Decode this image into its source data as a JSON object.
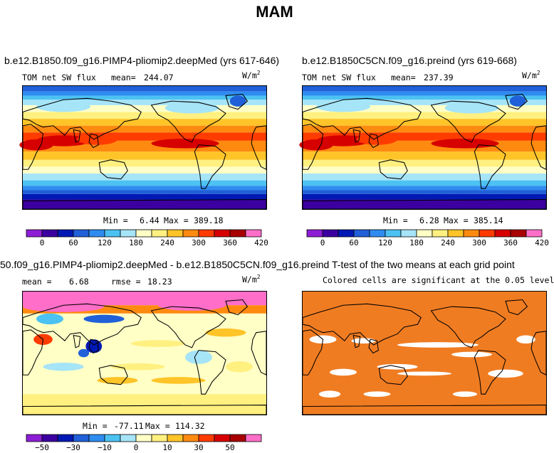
{
  "page": {
    "title": "MAM"
  },
  "colors": {
    "sw_scale": [
      "#8c1ed6",
      "#3c00a0",
      "#0019b4",
      "#2060d8",
      "#2e8cf0",
      "#4cc2f2",
      "#a6e4f8",
      "#ffffc6",
      "#fff080",
      "#ffc428",
      "#ff8a10",
      "#ff3c00",
      "#d60000",
      "#a80000",
      "#ff6ec8"
    ],
    "diff_scale": [
      "#8c1ed6",
      "#3c00a0",
      "#0019b4",
      "#2060d8",
      "#2e8cf0",
      "#4cc2f2",
      "#a6e4f8",
      "#ffffc6",
      "#fff080",
      "#ffc428",
      "#ff8a10",
      "#ff3c00",
      "#d60000",
      "#a80000",
      "#ff6ec8"
    ],
    "ttest": "#f07c22",
    "coast": "#000000"
  },
  "chart_data": [
    {
      "id": "panel-a",
      "type": "heatmap",
      "title": "b.e12.B1850.f09_g16.PIMP4-pliomip2.deepMed (yrs 617-646)",
      "variable": "TOM net SW flux",
      "mean_label": "mean=",
      "mean": "244.07",
      "units": "W/m",
      "units_exp": "2",
      "min_label": "Min =",
      "min": "6.44",
      "max_label": "Max =",
      "max": "389.18",
      "colorbar_ticks": [
        "0",
        "60",
        "120",
        "180",
        "240",
        "300",
        "360",
        "420"
      ]
    },
    {
      "id": "panel-b",
      "type": "heatmap",
      "title": "b.e12.B1850C5CN.f09_g16.preind (yrs 619-668)",
      "variable": "TOM net SW flux",
      "mean_label": "mean=",
      "mean": "237.39",
      "units": "W/m",
      "units_exp": "2",
      "min_label": "Min =",
      "min": "6.28",
      "max_label": "Max =",
      "max": "385.14",
      "colorbar_ticks": [
        "0",
        "60",
        "120",
        "180",
        "240",
        "300",
        "360",
        "420"
      ]
    },
    {
      "id": "panel-c",
      "type": "heatmap",
      "title": "50.f09_g16.PIMP4-pliomip2.deepMed - b.e12.B1850C5CN.f09_g16.preind",
      "mean_label": "mean =",
      "mean": "6.68",
      "rmse_label": "rmse =",
      "rmse": "18.23",
      "units": "W/m",
      "units_exp": "2",
      "min_label": "Min =",
      "min": "-77.11",
      "max_label": "Max =",
      "max": "114.32",
      "colorbar_ticks": [
        "−50",
        "−30",
        "−10",
        "0",
        "10",
        "30",
        "50"
      ]
    },
    {
      "id": "panel-d",
      "type": "heatmap",
      "title": "T-test of the two means at each grid point",
      "subtitle": "Colored cells are significant at the 0.05 level"
    }
  ]
}
